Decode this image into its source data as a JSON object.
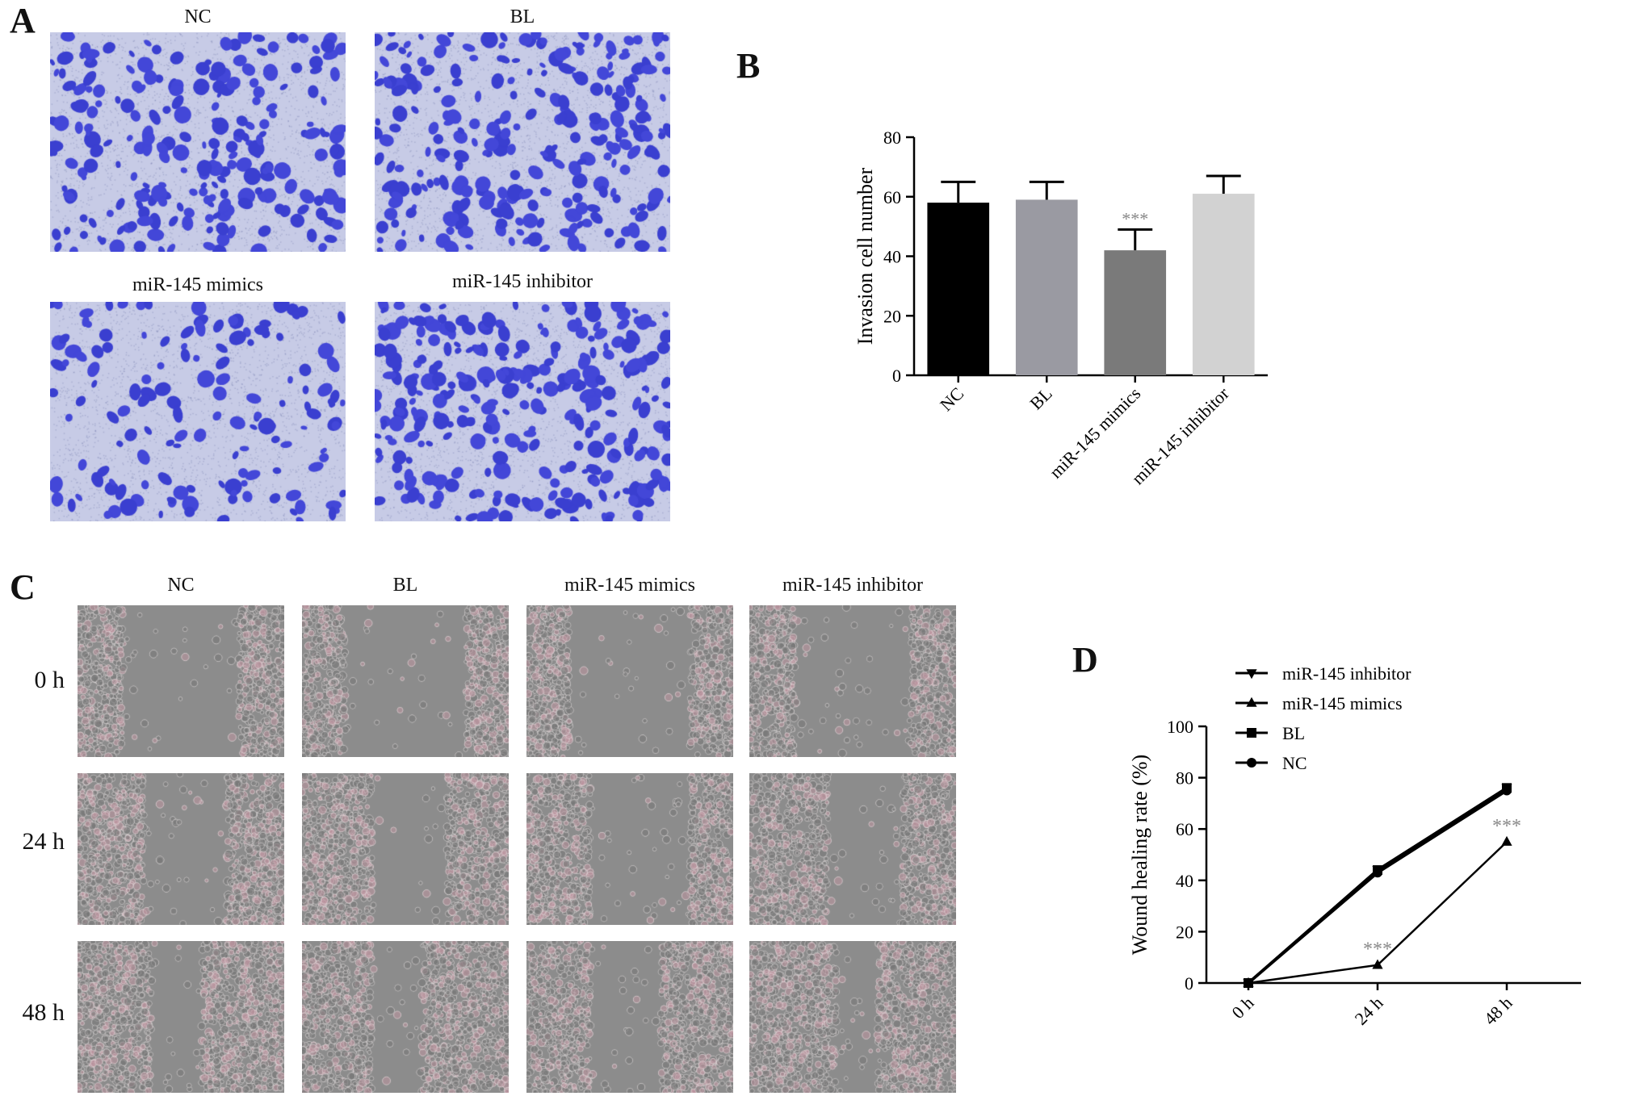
{
  "panels": {
    "a": {
      "letter": "A",
      "images": [
        {
          "title": "NC"
        },
        {
          "title": "BL"
        },
        {
          "title": "miR-145 mimics"
        },
        {
          "title": "miR-145 inhibitor"
        }
      ]
    },
    "b": {
      "letter": "B"
    },
    "c": {
      "letter": "C",
      "column_titles": [
        "NC",
        "BL",
        "miR-145 mimics",
        "miR-145 inhibitor"
      ],
      "row_labels": [
        "0 h",
        "24 h",
        "48 h"
      ]
    },
    "d": {
      "letter": "D"
    }
  },
  "colors": {
    "stain": "#3a3fd0",
    "membrane": "#c7cbe6",
    "phase_bg": "#8c8c8c"
  },
  "chart_data": [
    {
      "type": "bar",
      "categories": [
        "NC",
        "BL",
        "miR-145 mimics",
        "miR-145 inhibitor"
      ],
      "values": [
        58,
        59,
        42,
        61
      ],
      "errors": [
        7,
        6,
        7,
        6
      ],
      "bar_colors": [
        "#000000",
        "#9a9aa2",
        "#7a7a7a",
        "#d2d2d2"
      ],
      "annotations": [
        "",
        "",
        "***",
        ""
      ],
      "title": "",
      "xlabel": "",
      "ylabel": "Invasion cell number",
      "ylim": [
        0,
        80
      ],
      "yticks": [
        0,
        20,
        40,
        60,
        80
      ],
      "grid": false
    },
    {
      "type": "line",
      "categories": [
        "0 h",
        "24 h",
        "48 h"
      ],
      "series": [
        {
          "name": "miR-145 inhibitor",
          "marker": "triangle-down",
          "values": [
            0,
            44,
            76
          ]
        },
        {
          "name": "miR-145 mimics",
          "marker": "triangle-up",
          "values": [
            0,
            7,
            55
          ]
        },
        {
          "name": "BL",
          "marker": "square",
          "values": [
            0,
            44,
            76
          ]
        },
        {
          "name": "NC",
          "marker": "circle",
          "values": [
            0,
            43,
            75
          ]
        }
      ],
      "annotations": [
        {
          "category": "24 h",
          "series": "miR-145 mimics",
          "text": "***"
        },
        {
          "category": "48 h",
          "series": "miR-145 mimics",
          "text": "***"
        }
      ],
      "title": "",
      "xlabel": "",
      "ylabel": "Wound healing rate  (%)",
      "ylim": [
        0,
        100
      ],
      "yticks": [
        0,
        20,
        40,
        60,
        80,
        100
      ],
      "legend_position": "top-left",
      "grid": false
    }
  ]
}
